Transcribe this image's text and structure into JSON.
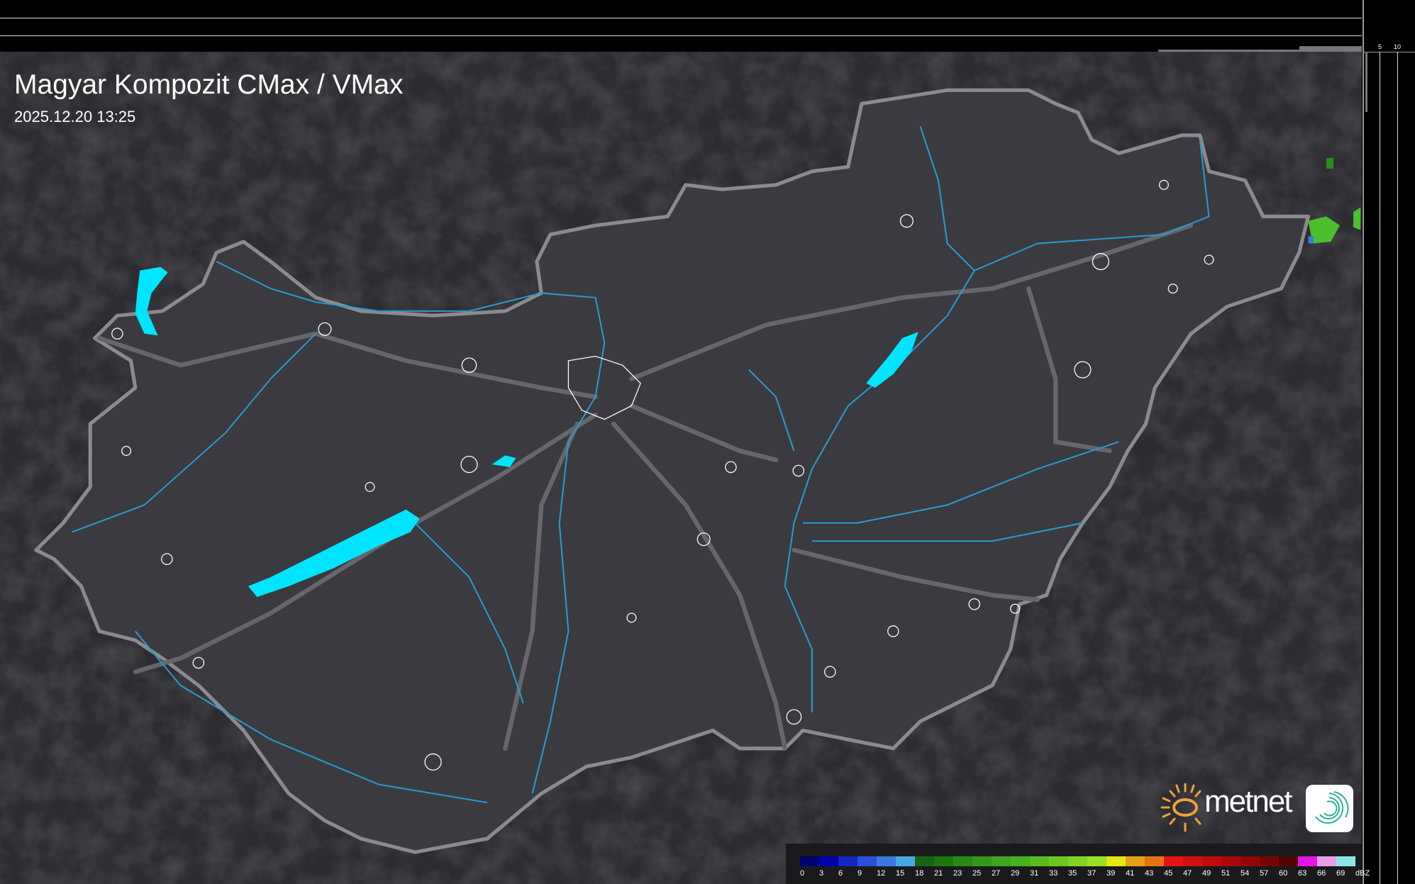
{
  "title": "Magyar Kompozit CMax / VMax",
  "timestamp": "2025.12.20 13:25",
  "top_axis_labels": [
    "10",
    "5"
  ],
  "right_axis_labels": [
    "5",
    "10"
  ],
  "logo": {
    "brand": "metnet",
    "sun_color": "#f0a040",
    "icon": "spiral-app-icon"
  },
  "colors": {
    "land": "#3a3a40",
    "border": "#8a8a90",
    "river": "#2a9ad0",
    "lake": "#00e5ff",
    "road": "#66666c",
    "echo": "#4cc02c"
  },
  "legend": {
    "unit": "dBZ",
    "items": [
      {
        "label": "0",
        "color": "#00006e"
      },
      {
        "label": "3",
        "color": "#0000a8"
      },
      {
        "label": "6",
        "color": "#1428c0"
      },
      {
        "label": "9",
        "color": "#2a50d8"
      },
      {
        "label": "12",
        "color": "#3c78e0"
      },
      {
        "label": "15",
        "color": "#48a8e8"
      },
      {
        "label": "18",
        "color": "#146414"
      },
      {
        "label": "21",
        "color": "#1e7810"
      },
      {
        "label": "23",
        "color": "#288a14"
      },
      {
        "label": "25",
        "color": "#329818"
      },
      {
        "label": "27",
        "color": "#3ca61c"
      },
      {
        "label": "29",
        "color": "#46b21e"
      },
      {
        "label": "31",
        "color": "#5abc20"
      },
      {
        "label": "33",
        "color": "#6ec622"
      },
      {
        "label": "35",
        "color": "#84d224"
      },
      {
        "label": "37",
        "color": "#98e028"
      },
      {
        "label": "39",
        "color": "#e6e614"
      },
      {
        "label": "41",
        "color": "#e6a014"
      },
      {
        "label": "43",
        "color": "#e67414"
      },
      {
        "label": "45",
        "color": "#e61414"
      },
      {
        "label": "47",
        "color": "#d01010"
      },
      {
        "label": "49",
        "color": "#bc0c0c"
      },
      {
        "label": "51",
        "color": "#a80808"
      },
      {
        "label": "54",
        "color": "#920606"
      },
      {
        "label": "57",
        "color": "#760404"
      },
      {
        "label": "60",
        "color": "#500202"
      },
      {
        "label": "63",
        "color": "#e614e6"
      },
      {
        "label": "66",
        "color": "#e6a0e6"
      },
      {
        "label": "69",
        "color": "#8ce6e6"
      }
    ]
  }
}
